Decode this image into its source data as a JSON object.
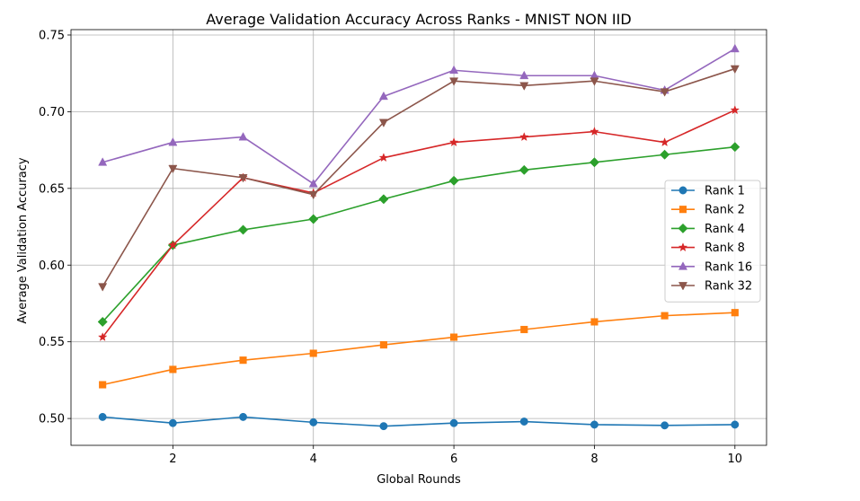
{
  "chart_data": {
    "type": "line",
    "title": "Average Validation Accuracy Across Ranks - MNIST NON IID",
    "xlabel": "Global Rounds",
    "ylabel": "Average Validation Accuracy",
    "x": [
      1,
      2,
      3,
      4,
      5,
      6,
      7,
      8,
      9,
      10
    ],
    "xlim": [
      0.55,
      10.45
    ],
    "ylim": [
      0.4825,
      0.7535
    ],
    "xticks": [
      2,
      4,
      6,
      8,
      10
    ],
    "xtick_labels": [
      "2",
      "4",
      "6",
      "8",
      "10"
    ],
    "yticks": [
      0.5,
      0.55,
      0.6,
      0.65,
      0.7,
      0.75
    ],
    "ytick_labels": [
      "0.50",
      "0.55",
      "0.60",
      "0.65",
      "0.70",
      "0.75"
    ],
    "grid": true,
    "legend_position": "center-right",
    "series": [
      {
        "name": "Rank 1",
        "color": "#1f77b4",
        "marker": "circle",
        "values": [
          0.501,
          0.497,
          0.501,
          0.4975,
          0.495,
          0.497,
          0.498,
          0.496,
          0.4955,
          0.496
        ]
      },
      {
        "name": "Rank 2",
        "color": "#ff7f0e",
        "marker": "square",
        "values": [
          0.522,
          0.532,
          0.538,
          0.5425,
          0.548,
          0.553,
          0.558,
          0.563,
          0.567,
          0.569
        ]
      },
      {
        "name": "Rank 4",
        "color": "#2ca02c",
        "marker": "diamond",
        "values": [
          0.563,
          0.613,
          0.623,
          0.63,
          0.643,
          0.655,
          0.662,
          0.667,
          0.672,
          0.677
        ]
      },
      {
        "name": "Rank 8",
        "color": "#d62728",
        "marker": "star",
        "values": [
          0.553,
          0.613,
          0.657,
          0.647,
          0.67,
          0.68,
          0.6835,
          0.687,
          0.68,
          0.701
        ]
      },
      {
        "name": "Rank 16",
        "color": "#9467bd",
        "marker": "triangle-up",
        "values": [
          0.667,
          0.68,
          0.6835,
          0.653,
          0.71,
          0.727,
          0.7235,
          0.7235,
          0.714,
          0.741
        ]
      },
      {
        "name": "Rank 32",
        "color": "#8c564b",
        "marker": "triangle-down",
        "values": [
          0.586,
          0.663,
          0.657,
          0.646,
          0.693,
          0.72,
          0.717,
          0.72,
          0.713,
          0.728
        ]
      }
    ]
  }
}
